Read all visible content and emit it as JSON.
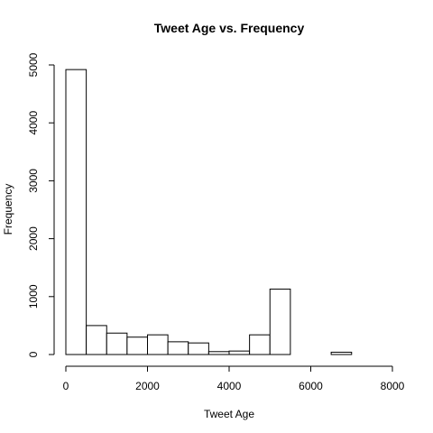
{
  "chart_data": {
    "type": "bar",
    "title": "Tweet Age vs. Frequency",
    "xlabel": "Tweet Age",
    "ylabel": "Frequency",
    "xlim": [
      0,
      8000
    ],
    "ylim": [
      0,
      5000
    ],
    "x_ticks": [
      0,
      2000,
      4000,
      6000,
      8000
    ],
    "y_ticks": [
      0,
      1000,
      2000,
      3000,
      4000,
      5000
    ],
    "bin_width": 500,
    "bins": [
      {
        "start": 0,
        "end": 500,
        "value": 4920
      },
      {
        "start": 500,
        "end": 1000,
        "value": 500
      },
      {
        "start": 1000,
        "end": 1500,
        "value": 370
      },
      {
        "start": 1500,
        "end": 2000,
        "value": 300
      },
      {
        "start": 2000,
        "end": 2500,
        "value": 340
      },
      {
        "start": 2500,
        "end": 3000,
        "value": 220
      },
      {
        "start": 3000,
        "end": 3500,
        "value": 200
      },
      {
        "start": 3500,
        "end": 4000,
        "value": 50
      },
      {
        "start": 4000,
        "end": 4500,
        "value": 60
      },
      {
        "start": 4500,
        "end": 5000,
        "value": 340
      },
      {
        "start": 5000,
        "end": 5500,
        "value": 1130
      },
      {
        "start": 5500,
        "end": 6000,
        "value": 0
      },
      {
        "start": 6000,
        "end": 6500,
        "value": 0
      },
      {
        "start": 6500,
        "end": 7000,
        "value": 40
      }
    ]
  }
}
